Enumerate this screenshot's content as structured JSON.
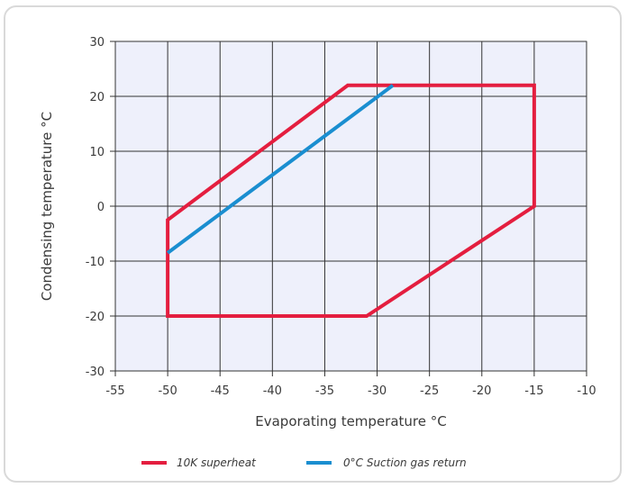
{
  "chart_data": {
    "type": "line",
    "xlabel": "Evaporating temperature  °C",
    "ylabel": "Condensing temperature  °C",
    "xlim": [
      -55,
      -10
    ],
    "ylim": [
      -30,
      30
    ],
    "xticks": [
      -55,
      -50,
      -45,
      -40,
      -35,
      -30,
      -25,
      -20,
      -15,
      -10
    ],
    "yticks": [
      -30,
      -20,
      -10,
      0,
      10,
      20,
      30
    ],
    "grid": true,
    "legend_position": "bottom",
    "series": [
      {
        "name": "10K superheat",
        "color": "#e41e3f",
        "closed": true,
        "points": [
          [
            -50,
            -2.5
          ],
          [
            -32.8,
            22
          ],
          [
            -15,
            22
          ],
          [
            -15,
            0
          ],
          [
            -31,
            -20
          ],
          [
            -50,
            -20
          ]
        ]
      },
      {
        "name": "0°C Suction gas return",
        "color": "#1a8ed0",
        "closed": false,
        "points": [
          [
            -50,
            -8.5
          ],
          [
            -28.5,
            22
          ]
        ]
      }
    ]
  }
}
